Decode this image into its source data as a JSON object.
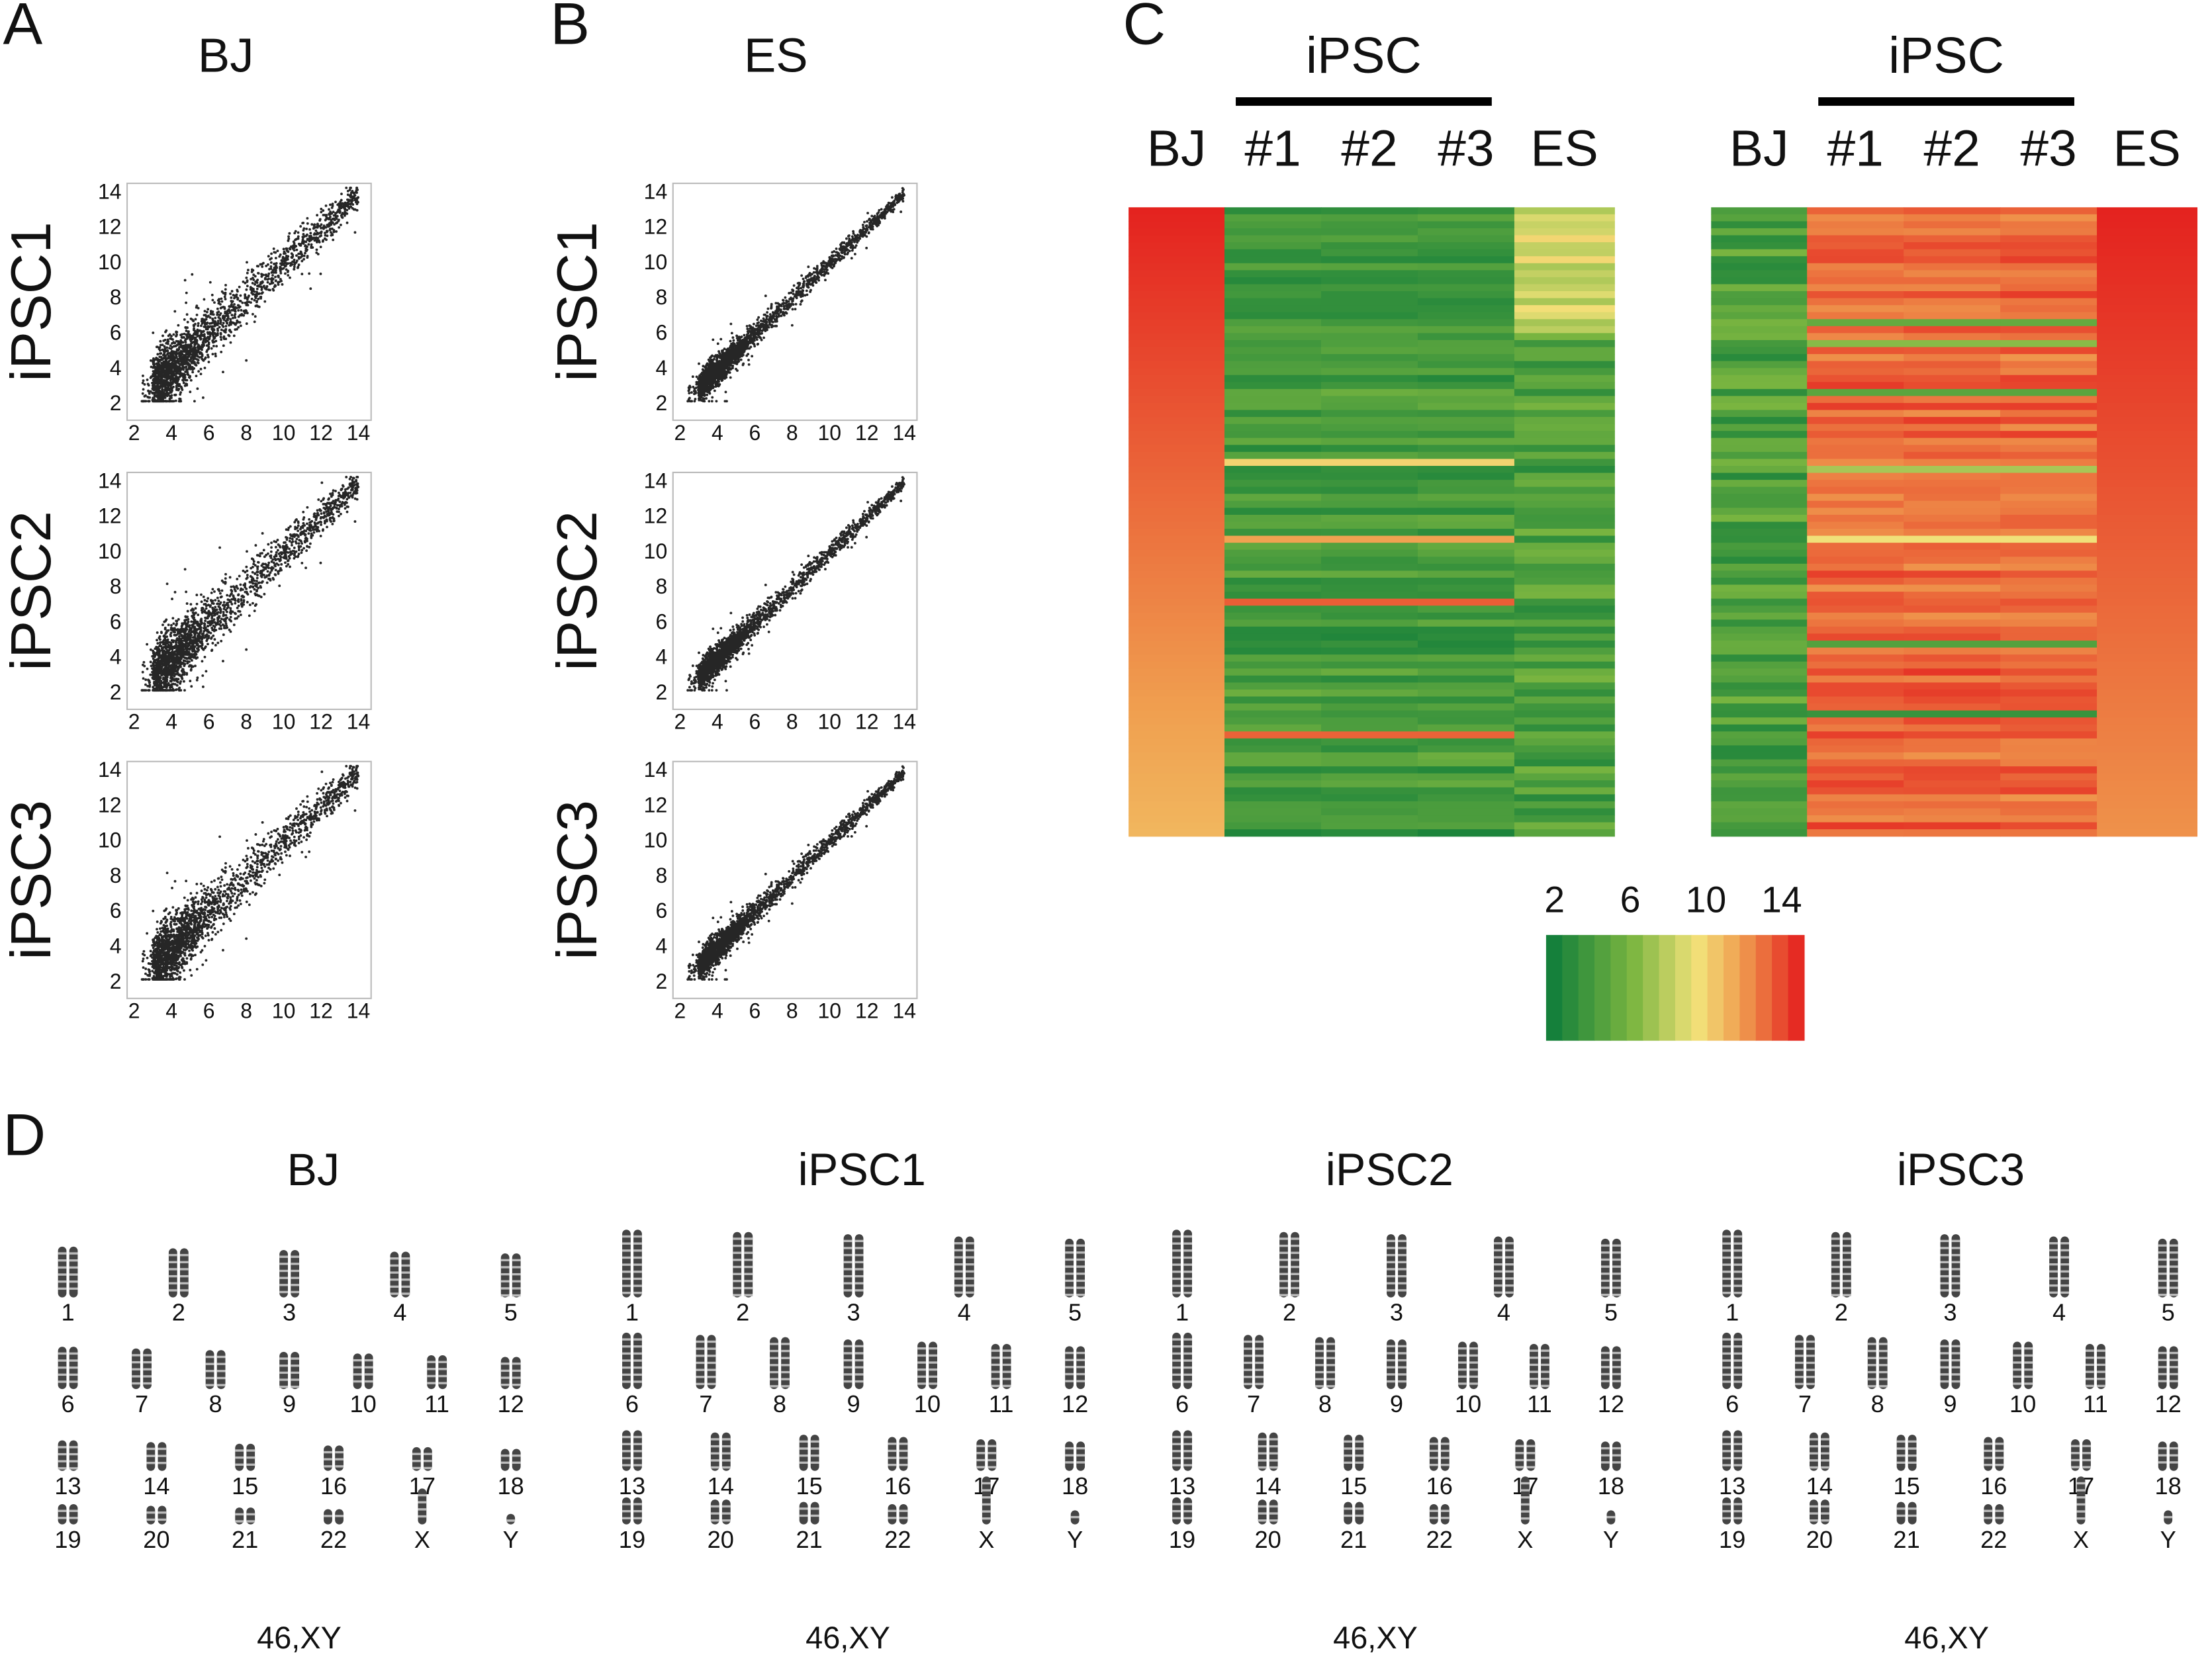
{
  "panels": {
    "A": {
      "label": "A",
      "title": "BJ",
      "rows": [
        "iPSC1",
        "iPSC2",
        "iPSC3"
      ]
    },
    "B": {
      "label": "B",
      "title": "ES",
      "rows": [
        "iPSC1",
        "iPSC2",
        "iPSC3"
      ]
    },
    "axis_ticks": [
      2,
      4,
      6,
      8,
      10,
      12,
      14
    ],
    "C": {
      "label": "C",
      "heatmaps": [
        {
          "group": "iPSC",
          "columns": [
            "BJ",
            "#1",
            "#2",
            "#3",
            "ES"
          ]
        },
        {
          "group": "iPSC",
          "columns": [
            "BJ",
            "#1",
            "#2",
            "#3",
            "ES"
          ]
        }
      ],
      "colorbar_ticks": [
        2,
        6,
        10,
        14
      ]
    },
    "D": {
      "label": "D",
      "karyotypes": [
        {
          "title": "BJ",
          "result": "46,XY"
        },
        {
          "title": "iPSC1",
          "result": "46,XY"
        },
        {
          "title": "iPSC2",
          "result": "46,XY"
        },
        {
          "title": "iPSC3",
          "result": "46,XY"
        }
      ],
      "chromosomes": [
        "1",
        "2",
        "3",
        "4",
        "5",
        "6",
        "7",
        "8",
        "9",
        "10",
        "11",
        "12",
        "13",
        "14",
        "15",
        "16",
        "17",
        "18",
        "19",
        "20",
        "21",
        "22",
        "X",
        "Y"
      ]
    }
  }
}
